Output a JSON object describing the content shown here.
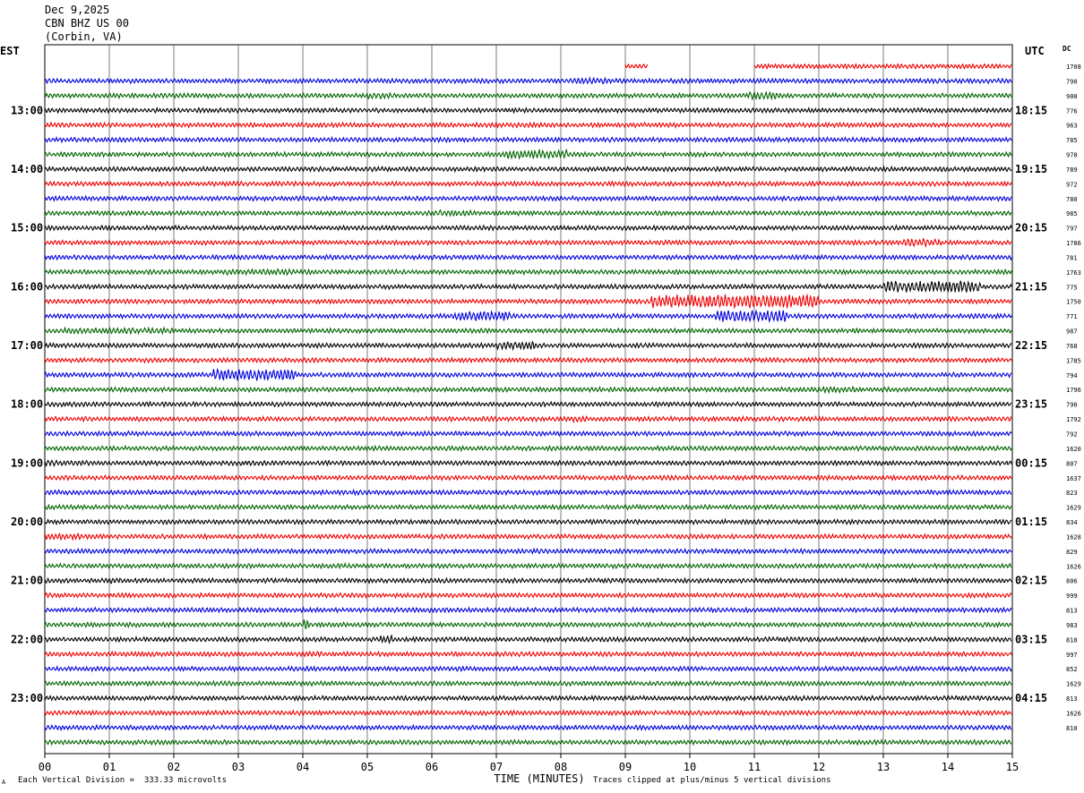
{
  "header": {
    "date": "Dec 9,2025",
    "station": "CBN BHZ US 00",
    "location": "(Corbin, VA)"
  },
  "left_tz": "EST",
  "right_tz": "UTC",
  "dc_label": "DC",
  "footer": {
    "scale": "Each Vertical Division =  333.33 microvolts",
    "clip": "Traces clipped at plus/minus 5 vertical divisions",
    "corner_mark": "A"
  },
  "colors": {
    "black": "#000000",
    "red": "#ee0000",
    "blue": "#0000dd",
    "green": "#006600",
    "grid": "#000000"
  },
  "chart_data": {
    "type": "line",
    "title": "Dec 9,2025 CBN BHZ US 00 (Corbin, VA)",
    "xlabel": "TIME (MINUTES)",
    "x_ticks": [
      "00",
      "01",
      "02",
      "03",
      "04",
      "05",
      "06",
      "07",
      "08",
      "09",
      "10",
      "11",
      "12",
      "13",
      "14",
      "15"
    ],
    "xlim": [
      0,
      15
    ],
    "left_hour_labels": [
      "13:00",
      "14:00",
      "15:00",
      "16:00",
      "17:00",
      "18:00",
      "19:00",
      "20:00",
      "21:00",
      "22:00",
      "23:00"
    ],
    "right_hour_labels": [
      "18:15",
      "19:15",
      "20:15",
      "21:15",
      "22:15",
      "23:15",
      "00:15",
      "01:15",
      "02:15",
      "03:15",
      "04:15"
    ],
    "trace_colors": [
      "red",
      "blue",
      "green",
      "black"
    ],
    "first_trace_start_minute": 9.0,
    "first_trace_gap": [
      9.35,
      11.0
    ],
    "dc_offsets": [
      "1708",
      "790",
      "900",
      "776",
      "963",
      "785",
      "978",
      "789",
      "972",
      "780",
      "985",
      "797",
      "1786",
      "781",
      "1763",
      "775",
      "1750",
      "771",
      "987",
      "768",
      "1785",
      "794",
      "1796",
      "790",
      "1792",
      "792",
      "1620",
      "807",
      "1637",
      "823",
      "1629",
      "834",
      "1628",
      "829",
      "1626",
      "806",
      "999",
      "813",
      "983",
      "818",
      "997",
      "852",
      "1629",
      "813",
      "1626",
      "810"
    ],
    "grid": true
  }
}
